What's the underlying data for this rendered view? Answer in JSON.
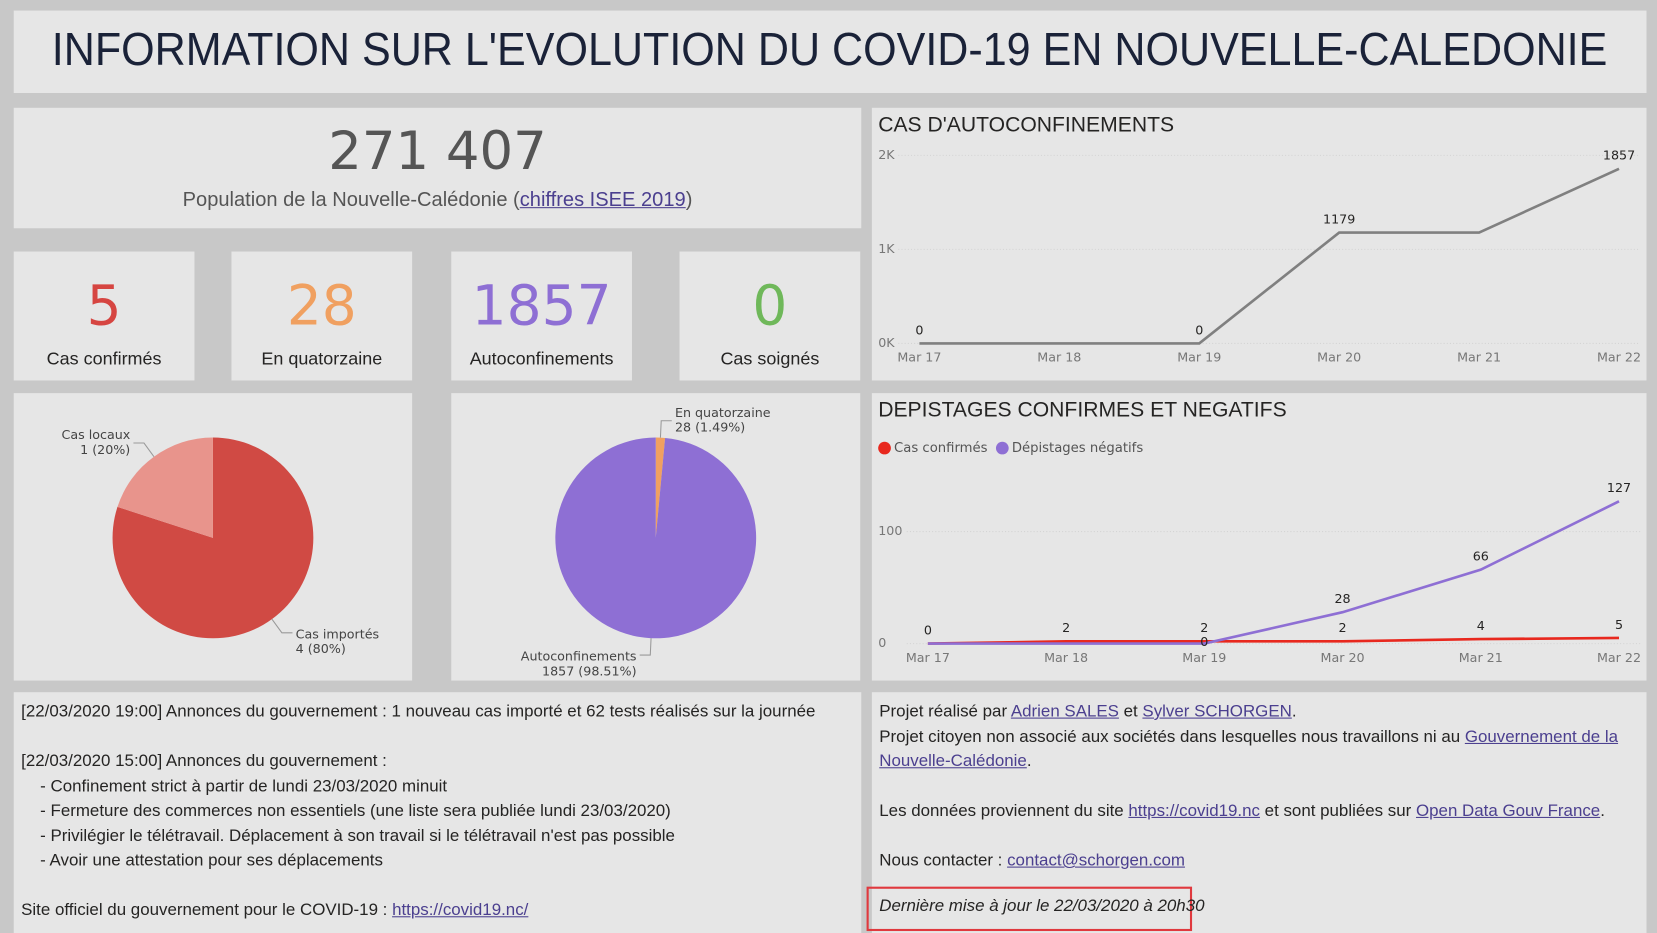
{
  "header": {
    "title": "INFORMATION SUR L'EVOLUTION DU COVID-19 EN NOUVELLE-CALEDONIE"
  },
  "population": {
    "value": "271 407",
    "caption": [
      {
        "text": "Population de la Nouvelle-Calédonie ("
      },
      {
        "link": "chiffres ISEE 2019"
      },
      {
        "text": ")"
      }
    ]
  },
  "kpis": [
    {
      "value": 5,
      "label": "Cas confirmés",
      "color": "#d64541"
    },
    {
      "value": 28,
      "label": "En quatorzaine",
      "color": "#f0a060"
    },
    {
      "value": 1857,
      "label": "Autoconfinements",
      "color": "#8e6fd4"
    },
    {
      "value": 0,
      "label": "Cas soignés",
      "color": "#6fb85a"
    }
  ],
  "chart_data": [
    {
      "type": "line",
      "title": "CAS D'AUTOCONFINEMENTS",
      "categories": [
        "Mar 17",
        "Mar 18",
        "Mar 19",
        "Mar 20",
        "Mar 21",
        "Mar 22"
      ],
      "values": [
        0,
        0,
        0,
        1179,
        1179,
        1857
      ],
      "value_labels": [
        "0",
        null,
        "0",
        "1179",
        null,
        "1857"
      ],
      "color": "#808080",
      "ylim": [
        0,
        2000
      ],
      "yticks": [
        {
          "value": 0,
          "label": "0K"
        },
        {
          "value": 1000,
          "label": "1K"
        },
        {
          "value": 2000,
          "label": "2K"
        }
      ],
      "grid": true
    },
    {
      "type": "line",
      "title": "DEPISTAGES CONFIRMES ET NEGATIFS",
      "categories": [
        "Mar 17",
        "Mar 18",
        "Mar 19",
        "Mar 20",
        "Mar 21",
        "Mar 22"
      ],
      "series": [
        {
          "name": "Cas confirmés",
          "color": "#e8281e",
          "values": [
            0,
            2,
            2,
            2,
            4,
            5
          ],
          "value_labels": [
            "0",
            "2",
            "2",
            "2",
            "4",
            "5"
          ]
        },
        {
          "name": "Dépistages négatifs",
          "color": "#8e6fd4",
          "values": [
            0,
            0,
            0,
            28,
            66,
            127
          ],
          "value_labels": [
            null,
            null,
            "0",
            "28",
            "66",
            "127"
          ]
        }
      ],
      "ylim": [
        0,
        140
      ],
      "yticks": [
        0,
        100
      ],
      "grid": true,
      "legend": "top-left"
    },
    {
      "type": "pie",
      "categories": [
        "Cas importés",
        "Cas locaux"
      ],
      "values": [
        4,
        1
      ],
      "value_labels": [
        "4 (80%)",
        "1 (20%)"
      ],
      "colors": [
        "#d04a44",
        "#e8948c"
      ]
    },
    {
      "type": "pie",
      "categories": [
        "En quatorzaine",
        "Autoconfinements"
      ],
      "values": [
        28,
        1857
      ],
      "value_labels": [
        "28 (1.49%)",
        "1857 (98.51%)"
      ],
      "colors": [
        "#f0a060",
        "#8e6fd4"
      ]
    }
  ],
  "news": {
    "blocks": [
      {
        "lines": [
          [
            {
              "text": "[22/03/2020 19:00] Annonces du gouvernement : 1 nouveau cas importé et 62 tests réalisés sur la journée"
            }
          ]
        ]
      },
      {
        "lines": [
          [
            {
              "text": "[22/03/2020 15:00] Annonces du gouvernement :"
            }
          ]
        ],
        "items": [
          "- Confinement strict à partir de lundi 23/03/2020 minuit",
          "- Fermeture des commerces non essentiels (une liste sera publiée lundi 23/03/2020)",
          "- Privilégier le télétravail. Déplacement à son travail si le télétravail n'est pas possible",
          "- Avoir une attestation pour ses déplacements"
        ]
      },
      {
        "lines": [
          [
            {
              "text": "Site officiel du gouvernement pour le COVID-19 : "
            },
            {
              "link": "https://covid19.nc/"
            }
          ]
        ]
      }
    ]
  },
  "about": {
    "blocks": [
      {
        "lines": [
          [
            {
              "text": "Projet réalisé par "
            },
            {
              "link": "Adrien SALES"
            },
            {
              "text": " et "
            },
            {
              "link": "Sylver SCHORGEN"
            },
            {
              "text": "."
            }
          ],
          [
            {
              "text": "Projet citoyen non associé aux sociétés dans lesquelles nous travaillons ni au "
            },
            {
              "link": "Gouvernement de la Nouvelle-Calédonie"
            },
            {
              "text": "."
            }
          ]
        ]
      },
      {
        "lines": [
          [
            {
              "text": "Les données proviennent du site "
            },
            {
              "link": "https://covid19.nc"
            },
            {
              "text": " et sont publiées sur "
            },
            {
              "link": "Open Data Gouv France"
            },
            {
              "text": "."
            }
          ]
        ]
      },
      {
        "lines": [
          [
            {
              "text": "Nous contacter : "
            },
            {
              "link": "contact@schorgen.com"
            }
          ]
        ]
      }
    ],
    "updated": "Dernière mise à jour le 22/03/2020 à 20h30"
  }
}
